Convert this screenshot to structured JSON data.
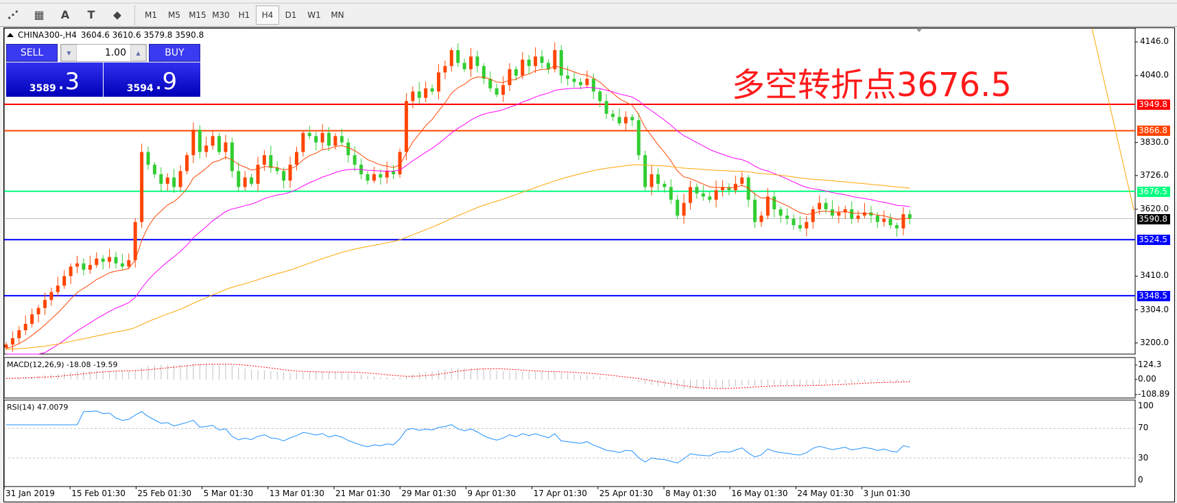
{
  "toolbar": {
    "icons": [
      "elliott-icon",
      "fibonacci-icon",
      "text-icon",
      "text-label-icon",
      "arrows-icon"
    ],
    "icon_glyphs": [
      "⋰",
      "▦",
      "A",
      "T",
      "⬥"
    ],
    "timeframes": [
      "M1",
      "M5",
      "M15",
      "M30",
      "H1",
      "H4",
      "D1",
      "W1",
      "MN"
    ],
    "active_timeframe": "H4"
  },
  "chart": {
    "symbol_line": "CHINA300-,H4",
    "ohlc": "3604.6 3610.6 3579.8 3590.8",
    "annotation": "多空转折点3676.5",
    "annotation_color": "#ff1a1a"
  },
  "trade_panel": {
    "sell_label": "SELL",
    "buy_label": "BUY",
    "lot": "1.00",
    "sell_price_main": "3589",
    "sell_price_frac": ".3",
    "buy_price_main": "3594",
    "buy_price_frac": ".9"
  },
  "chart_data": {
    "type": "candlestick",
    "up_color": "#ff4500",
    "down_color": "#32cd32",
    "closes": [
      3195,
      3215,
      3240,
      3260,
      3290,
      3310,
      3335,
      3360,
      3380,
      3410,
      3440,
      3450,
      3430,
      3445,
      3465,
      3455,
      3470,
      3450,
      3440,
      3460,
      3580,
      3800,
      3760,
      3730,
      3700,
      3720,
      3690,
      3740,
      3790,
      3870,
      3800,
      3820,
      3850,
      3800,
      3830,
      3740,
      3690,
      3720,
      3700,
      3760,
      3790,
      3750,
      3740,
      3710,
      3760,
      3800,
      3860,
      3850,
      3830,
      3860,
      3820,
      3850,
      3830,
      3790,
      3760,
      3730,
      3710,
      3730,
      3720,
      3740,
      3730,
      3800,
      3960,
      3990,
      3970,
      4000,
      3990,
      4050,
      4070,
      4120,
      4080,
      4060,
      4100,
      4070,
      4030,
      4000,
      3980,
      4010,
      4060,
      4040,
      4090,
      4070,
      4100,
      4080,
      4060,
      4120,
      4040,
      4030,
      4020,
      4010,
      4030,
      3990,
      3960,
      3920,
      3910,
      3890,
      3910,
      3900,
      3790,
      3690,
      3730,
      3700,
      3690,
      3650,
      3600,
      3640,
      3690,
      3670,
      3660,
      3650,
      3680,
      3690,
      3680,
      3700,
      3720,
      3650,
      3580,
      3600,
      3660,
      3620,
      3600,
      3590,
      3570,
      3560,
      3580,
      3620,
      3640,
      3620,
      3600,
      3610,
      3620,
      3590,
      3600,
      3610,
      3600,
      3580,
      3590,
      3570,
      3560,
      3604.6,
      3590.8
    ],
    "first_open": 3185,
    "moving_averages": [
      {
        "color": "#ff4500",
        "period": 10,
        "start": 3180
      },
      {
        "color": "#ff00ff",
        "period": 30,
        "start": 3110
      },
      {
        "color": "#ffa500",
        "period": 110,
        "start": 3180
      }
    ],
    "y_ticks": [
      "4146.0",
      "4040.0",
      "3830.0",
      "3726.0",
      "3620.0",
      "3410.0",
      "3304.0",
      "3200.0"
    ],
    "y_tick_values": [
      4146,
      4040,
      3830,
      3726,
      3620,
      3410,
      3304,
      3200
    ],
    "levels": [
      {
        "value": 3949.8,
        "label": "3949.8",
        "color": "#ff0000"
      },
      {
        "value": 3866.8,
        "label": "3866.8",
        "color": "#ff4500"
      },
      {
        "value": 3676.5,
        "label": "3676.5",
        "color": "#00ff7f"
      },
      {
        "value": 3590.8,
        "label": "3590.8",
        "color": "#000000",
        "line_color": "#c0c0c0"
      },
      {
        "value": 3524.5,
        "label": "3524.5",
        "color": "#0000ff"
      },
      {
        "value": 3348.5,
        "label": "3348.5",
        "color": "#0000ff"
      }
    ],
    "x_ticks": [
      "31 Jan 2019",
      "15 Feb 01:30",
      "25 Feb 01:30",
      "5 Mar 01:30",
      "13 Mar 01:30",
      "21 Mar 01:30",
      "29 Mar 01:30",
      "9 Apr 01:30",
      "17 Apr 01:30",
      "25 Apr 01:30",
      "8 May 01:30",
      "16 May 01:30",
      "24 May 01:30",
      "3 Jun 01:30"
    ],
    "macd": {
      "label": "MACD(12,26,9) -18.08 -19.59",
      "ticks": [
        "124.3",
        "0.00",
        "-108.89"
      ],
      "hist_color": "#c0c0c0",
      "signal_color": "#ff0000"
    },
    "rsi": {
      "label": "RSI(14) 47.0079",
      "ticks": [
        "100",
        "70",
        "30",
        "0"
      ],
      "levels": [
        70,
        30
      ],
      "color": "#1e90ff"
    }
  }
}
